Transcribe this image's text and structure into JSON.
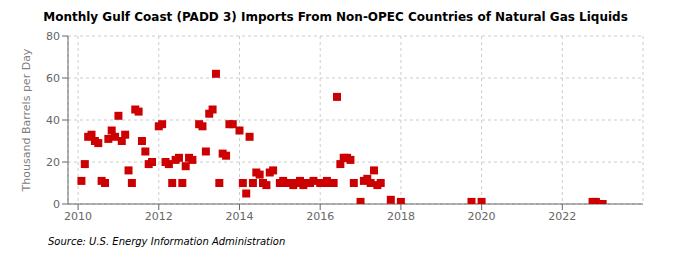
{
  "chart_data": {
    "type": "scatter",
    "title": "Monthly Gulf Coast (PADD 3) Imports From Non-OPEC Countries of Natural Gas Liquids",
    "ylabel": "Thousand Barrels per Day",
    "source": "Source: U.S. Energy Information Administration",
    "color": "#CC0000",
    "marker": "square",
    "grid": true,
    "xlim": [
      2009.75,
      2024.0
    ],
    "xticks": [
      2010,
      2012,
      2014,
      2016,
      2018,
      2020,
      2022
    ],
    "ylim": [
      0,
      80
    ],
    "yticks": [
      0,
      20,
      40,
      60,
      80
    ],
    "x": [
      2010.083,
      2010.167,
      2010.25,
      2010.333,
      2010.417,
      2010.5,
      2010.583,
      2010.667,
      2010.75,
      2010.833,
      2010.917,
      2011.0,
      2011.083,
      2011.167,
      2011.25,
      2011.333,
      2011.417,
      2011.5,
      2011.583,
      2011.667,
      2011.75,
      2011.833,
      2012.0,
      2012.083,
      2012.167,
      2012.25,
      2012.333,
      2012.417,
      2012.5,
      2012.583,
      2012.667,
      2012.75,
      2012.833,
      2013.0,
      2013.083,
      2013.167,
      2013.25,
      2013.333,
      2013.417,
      2013.5,
      2013.583,
      2013.667,
      2013.75,
      2013.833,
      2014.0,
      2014.083,
      2014.167,
      2014.25,
      2014.333,
      2014.417,
      2014.5,
      2014.583,
      2014.667,
      2014.75,
      2014.833,
      2015.0,
      2015.083,
      2015.167,
      2015.25,
      2015.333,
      2015.417,
      2015.5,
      2015.583,
      2015.667,
      2015.75,
      2015.833,
      2016.0,
      2016.083,
      2016.167,
      2016.25,
      2016.333,
      2016.417,
      2016.5,
      2016.583,
      2016.667,
      2016.75,
      2016.833,
      2017.0,
      2017.083,
      2017.167,
      2017.25,
      2017.333,
      2017.417,
      2017.5,
      2017.75,
      2018.0,
      2019.75,
      2020.0,
      2022.75,
      2022.833,
      2022.917,
      2023.0
    ],
    "values": [
      11,
      19,
      32,
      33,
      30,
      29,
      11,
      10,
      31,
      35,
      32,
      42,
      30,
      33,
      16,
      10,
      45,
      44,
      30,
      25,
      19,
      20,
      37,
      38,
      20,
      19,
      10,
      21,
      22,
      10,
      18,
      22,
      21,
      38,
      37,
      25,
      43,
      45,
      62,
      10,
      24,
      23,
      38,
      38,
      35,
      10,
      5,
      32,
      10,
      15,
      14,
      10,
      9,
      15,
      16,
      10,
      11,
      10,
      10,
      9,
      10,
      11,
      9,
      10,
      10,
      11,
      10,
      10,
      11,
      10,
      10,
      51,
      19,
      22,
      22,
      21,
      10,
      1,
      11,
      12,
      10,
      16,
      9,
      10,
      2,
      1,
      1,
      1,
      1,
      1,
      0,
      0
    ]
  }
}
